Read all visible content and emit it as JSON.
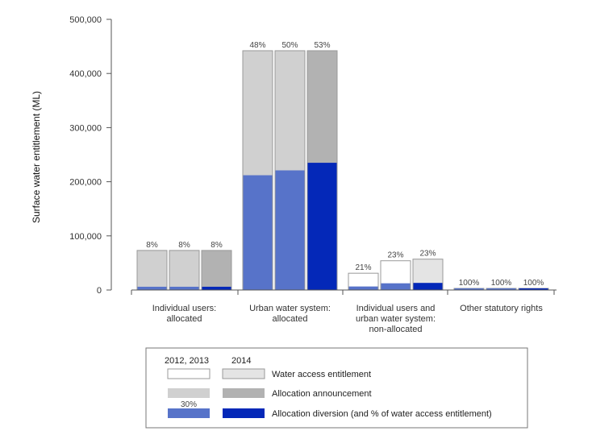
{
  "chart_data": {
    "type": "bar",
    "ylabel": "Surface water entitlement (ML)",
    "ylim": [
      0,
      500000
    ],
    "yticks": [
      {
        "value": 0,
        "label": "0"
      },
      {
        "value": 100000,
        "label": "100,000"
      },
      {
        "value": 200000,
        "label": "200,000"
      },
      {
        "value": 300000,
        "label": "300,000"
      },
      {
        "value": 400000,
        "label": "400,000"
      },
      {
        "value": 500000,
        "label": "500,000"
      }
    ],
    "years": [
      "2012",
      "2013",
      "2014"
    ],
    "categories": [
      {
        "label_lines": [
          "Individual users:",
          "allocated"
        ],
        "bars": [
          {
            "entitlement": 73000,
            "announcement": 73000,
            "diversion": 6000,
            "pct": "8%"
          },
          {
            "entitlement": 73000,
            "announcement": 73000,
            "diversion": 6000,
            "pct": "8%"
          },
          {
            "entitlement": 73000,
            "announcement": 73000,
            "diversion": 6000,
            "pct": "8%"
          }
        ]
      },
      {
        "label_lines": [
          "Urban water system:",
          "allocated"
        ],
        "bars": [
          {
            "entitlement": 442000,
            "announcement": 442000,
            "diversion": 212000,
            "pct": "48%"
          },
          {
            "entitlement": 442000,
            "announcement": 442000,
            "diversion": 221000,
            "pct": "50%"
          },
          {
            "entitlement": 442000,
            "announcement": 442000,
            "diversion": 235000,
            "pct": "53%"
          }
        ]
      },
      {
        "label_lines": [
          "Individual users and",
          "urban water system:",
          "non-allocated"
        ],
        "bars": [
          {
            "entitlement": 31000,
            "announcement": 0,
            "diversion": 6500,
            "pct": "21%"
          },
          {
            "entitlement": 54000,
            "announcement": 0,
            "diversion": 12400,
            "pct": "23%"
          },
          {
            "entitlement": 57000,
            "announcement": 0,
            "diversion": 13100,
            "pct": "23%"
          }
        ]
      },
      {
        "label_lines": [
          "Other statutory rights"
        ],
        "bars": [
          {
            "entitlement": 3000,
            "announcement": 0,
            "diversion": 3000,
            "pct": "100%"
          },
          {
            "entitlement": 3000,
            "announcement": 0,
            "diversion": 3000,
            "pct": "100%"
          },
          {
            "entitlement": 3000,
            "announcement": 0,
            "diversion": 3000,
            "pct": "100%"
          }
        ]
      }
    ],
    "legend": {
      "placement": "bottom",
      "header_left": "2012, 2013",
      "header_right": "2014",
      "sample_pct": "30%",
      "items": [
        {
          "label": "Water access entitlement",
          "color_early": "#ffffff",
          "color_2014": "#e4e4e4"
        },
        {
          "label": "Allocation announcement",
          "color_early": "#d0d0d0",
          "color_2014": "#b2b2b2"
        },
        {
          "label": "Allocation diversion (and % of water access entitlement)",
          "color_early": "#5773c9",
          "color_2014": "#0428b8"
        }
      ]
    },
    "colors": {
      "entitlement_early": "#ffffff",
      "entitlement_2014": "#e4e4e4",
      "announcement_early": "#d0d0d0",
      "announcement_2014": "#b2b2b2",
      "diversion_early": "#5773c9",
      "diversion_2014": "#0428b8",
      "outline": "#999999",
      "axis": "#555555"
    }
  }
}
